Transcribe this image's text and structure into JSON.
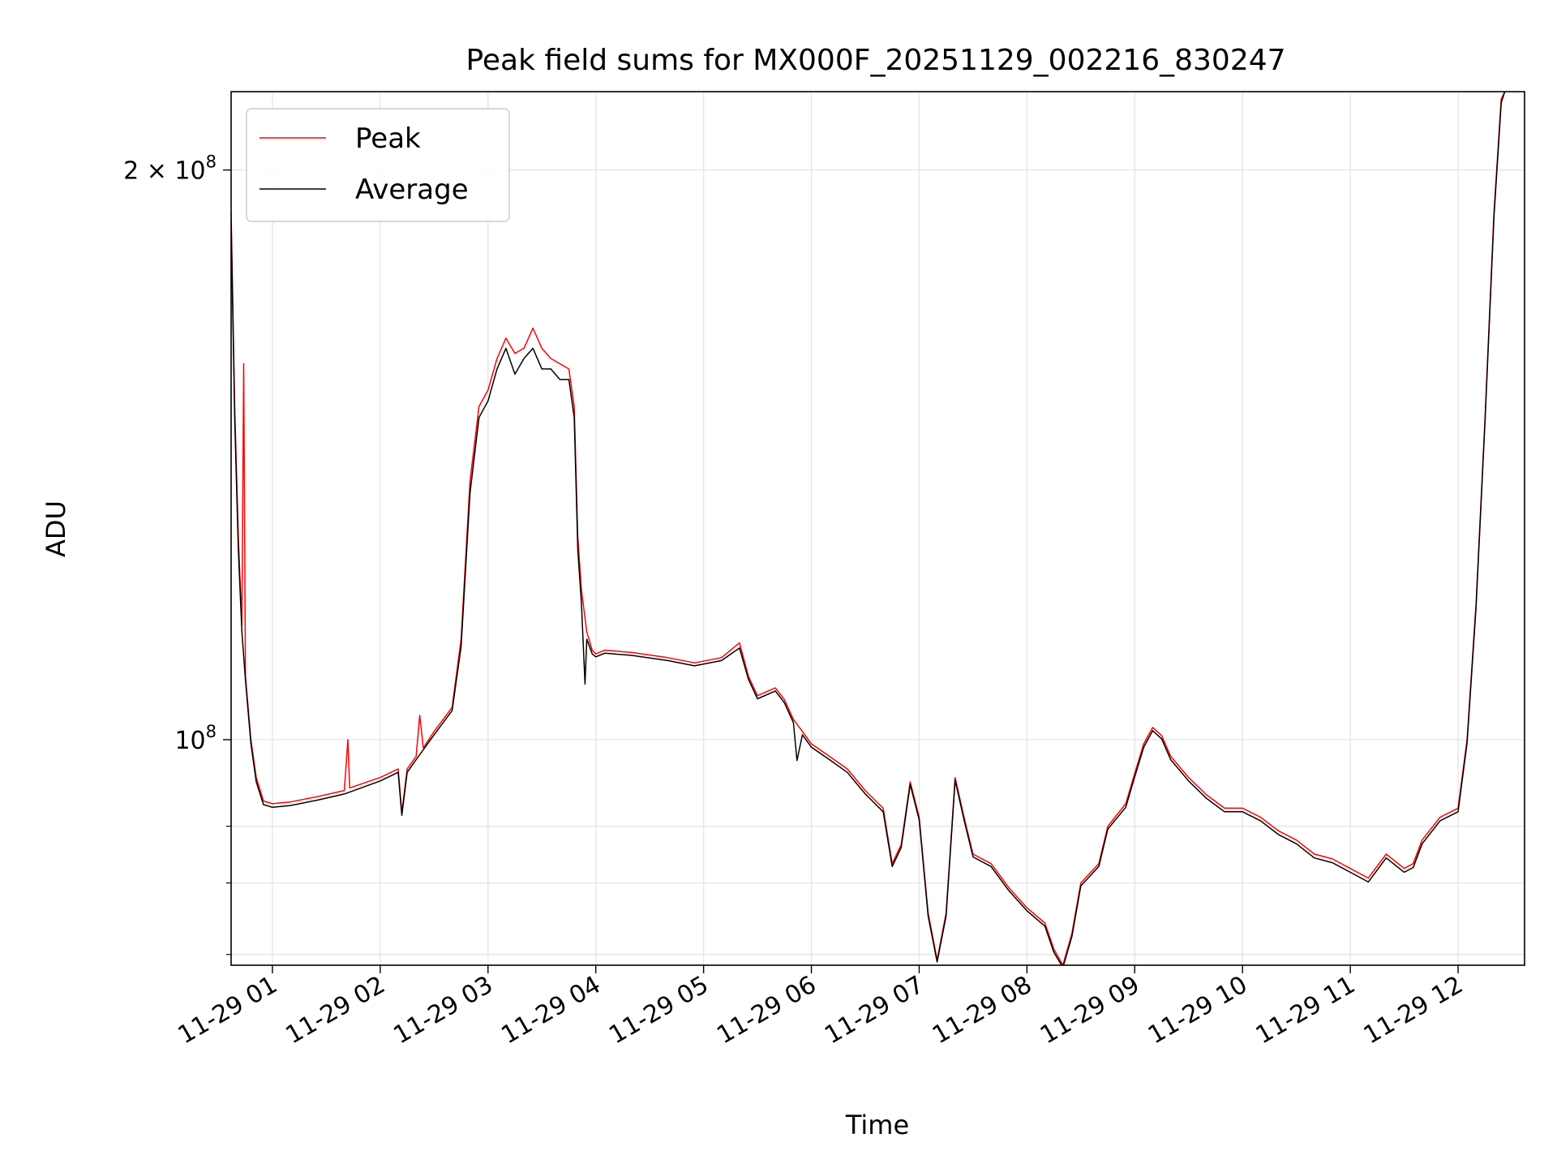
{
  "chart_data": {
    "type": "line",
    "title": "Peak field sums for MX000F_20251129_002216_830247",
    "xlabel": "Time",
    "ylabel": "ADU",
    "y_scale": "log",
    "grid": true,
    "legend_position": "top-left",
    "xlim": [
      "2025-11-29 00:37",
      "2025-11-29 12:37"
    ],
    "ylim": [
      76000000,
      220000000
    ],
    "x_ticks": [
      "2025-11-29 01:00",
      "2025-11-29 02:00",
      "2025-11-29 03:00",
      "2025-11-29 04:00",
      "2025-11-29 05:00",
      "2025-11-29 06:00",
      "2025-11-29 07:00",
      "2025-11-29 08:00",
      "2025-11-29 09:00",
      "2025-11-29 10:00",
      "2025-11-29 11:00",
      "2025-11-29 12:00"
    ],
    "x_tick_labels": [
      "11-29 01",
      "11-29 02",
      "11-29 03",
      "11-29 04",
      "11-29 05",
      "11-29 06",
      "11-29 07",
      "11-29 08",
      "11-29 09",
      "11-29 10",
      "11-29 11",
      "11-29 12"
    ],
    "y_ticks_major": [
      {
        "value": 100000000,
        "base": "10",
        "exp": "8",
        "prefix": ""
      },
      {
        "value": 200000000,
        "base": "10",
        "exp": "8",
        "prefix": "2 × "
      }
    ],
    "y_ticks_minor": [
      77000000,
      84000000,
      90000000
    ],
    "series": [
      {
        "name": "Peak",
        "color": "#ff0000",
        "points": [
          [
            "2025-11-29 00:37",
            190000000
          ],
          [
            "2025-11-29 00:39",
            150000000
          ],
          [
            "2025-11-29 00:41",
            128000000
          ],
          [
            "2025-11-29 00:43",
            115000000
          ],
          [
            "2025-11-29 00:44",
            158000000
          ],
          [
            "2025-11-29 00:45",
            108000000
          ],
          [
            "2025-11-29 00:48",
            100000000
          ],
          [
            "2025-11-29 00:51",
            95500000
          ],
          [
            "2025-11-29 00:55",
            92800000
          ],
          [
            "2025-11-29 01:00",
            92500000
          ],
          [
            "2025-11-29 01:10",
            92700000
          ],
          [
            "2025-11-29 01:25",
            93300000
          ],
          [
            "2025-11-29 01:40",
            94000000
          ],
          [
            "2025-11-29 01:42",
            100000000
          ],
          [
            "2025-11-29 01:43",
            94300000
          ],
          [
            "2025-11-29 02:00",
            95500000
          ],
          [
            "2025-11-29 02:10",
            96500000
          ],
          [
            "2025-11-29 02:12",
            91500000
          ],
          [
            "2025-11-29 02:15",
            96500000
          ],
          [
            "2025-11-29 02:20",
            98000000
          ],
          [
            "2025-11-29 02:22",
            103000000
          ],
          [
            "2025-11-29 02:24",
            99000000
          ],
          [
            "2025-11-29 02:30",
            101000000
          ],
          [
            "2025-11-29 02:40",
            104000000
          ],
          [
            "2025-11-29 02:45",
            113000000
          ],
          [
            "2025-11-29 02:50",
            137000000
          ],
          [
            "2025-11-29 02:55",
            150000000
          ],
          [
            "2025-11-29 03:00",
            153000000
          ],
          [
            "2025-11-29 03:05",
            159000000
          ],
          [
            "2025-11-29 03:10",
            163000000
          ],
          [
            "2025-11-29 03:15",
            160000000
          ],
          [
            "2025-11-29 03:20",
            161000000
          ],
          [
            "2025-11-29 03:25",
            165000000
          ],
          [
            "2025-11-29 03:30",
            161000000
          ],
          [
            "2025-11-29 03:35",
            159000000
          ],
          [
            "2025-11-29 03:40",
            158000000
          ],
          [
            "2025-11-29 03:45",
            157000000
          ],
          [
            "2025-11-29 03:48",
            150000000
          ],
          [
            "2025-11-29 03:50",
            128000000
          ],
          [
            "2025-11-29 03:52",
            120000000
          ],
          [
            "2025-11-29 03:55",
            114000000
          ],
          [
            "2025-11-29 03:58",
            111500000
          ],
          [
            "2025-11-29 04:00",
            111000000
          ],
          [
            "2025-11-29 04:05",
            111500000
          ],
          [
            "2025-11-29 04:20",
            111200000
          ],
          [
            "2025-11-29 04:40",
            110500000
          ],
          [
            "2025-11-29 04:55",
            109800000
          ],
          [
            "2025-11-29 05:10",
            110500000
          ],
          [
            "2025-11-29 05:20",
            112500000
          ],
          [
            "2025-11-29 05:25",
            108000000
          ],
          [
            "2025-11-29 05:30",
            105500000
          ],
          [
            "2025-11-29 05:40",
            106500000
          ],
          [
            "2025-11-29 05:45",
            105000000
          ],
          [
            "2025-11-29 05:50",
            102500000
          ],
          [
            "2025-11-29 05:55",
            101000000
          ],
          [
            "2025-11-29 06:00",
            99500000
          ],
          [
            "2025-11-29 06:10",
            98000000
          ],
          [
            "2025-11-29 06:20",
            96500000
          ],
          [
            "2025-11-29 06:30",
            94000000
          ],
          [
            "2025-11-29 06:40",
            92000000
          ],
          [
            "2025-11-29 06:45",
            86000000
          ],
          [
            "2025-11-29 06:50",
            88000000
          ],
          [
            "2025-11-29 06:55",
            95000000
          ],
          [
            "2025-11-29 07:00",
            91000000
          ],
          [
            "2025-11-29 07:05",
            81000000
          ],
          [
            "2025-11-29 07:10",
            76500000
          ],
          [
            "2025-11-29 07:15",
            81000000
          ],
          [
            "2025-11-29 07:20",
            95500000
          ],
          [
            "2025-11-29 07:25",
            91000000
          ],
          [
            "2025-11-29 07:30",
            87000000
          ],
          [
            "2025-11-29 07:40",
            86000000
          ],
          [
            "2025-11-29 07:50",
            83500000
          ],
          [
            "2025-11-29 08:00",
            81500000
          ],
          [
            "2025-11-29 08:10",
            80000000
          ],
          [
            "2025-11-29 08:15",
            77500000
          ],
          [
            "2025-11-29 08:20",
            76000000
          ],
          [
            "2025-11-29 08:25",
            79000000
          ],
          [
            "2025-11-29 08:30",
            84000000
          ],
          [
            "2025-11-29 08:40",
            86000000
          ],
          [
            "2025-11-29 08:45",
            90000000
          ],
          [
            "2025-11-29 08:55",
            92500000
          ],
          [
            "2025-11-29 09:00",
            96000000
          ],
          [
            "2025-11-29 09:05",
            99500000
          ],
          [
            "2025-11-29 09:10",
            101500000
          ],
          [
            "2025-11-29 09:15",
            100500000
          ],
          [
            "2025-11-29 09:20",
            98000000
          ],
          [
            "2025-11-29 09:30",
            95500000
          ],
          [
            "2025-11-29 09:40",
            93500000
          ],
          [
            "2025-11-29 09:50",
            92000000
          ],
          [
            "2025-11-29 10:00",
            92000000
          ],
          [
            "2025-11-29 10:10",
            91000000
          ],
          [
            "2025-11-29 10:20",
            89500000
          ],
          [
            "2025-11-29 10:30",
            88500000
          ],
          [
            "2025-11-29 10:40",
            87000000
          ],
          [
            "2025-11-29 10:50",
            86500000
          ],
          [
            "2025-11-29 11:00",
            85500000
          ],
          [
            "2025-11-29 11:10",
            84500000
          ],
          [
            "2025-11-29 11:20",
            87000000
          ],
          [
            "2025-11-29 11:30",
            85500000
          ],
          [
            "2025-11-29 11:35",
            86000000
          ],
          [
            "2025-11-29 11:40",
            88500000
          ],
          [
            "2025-11-29 11:50",
            91000000
          ],
          [
            "2025-11-29 12:00",
            92000000
          ],
          [
            "2025-11-29 12:05",
            100000000
          ],
          [
            "2025-11-29 12:10",
            118000000
          ],
          [
            "2025-11-29 12:15",
            148000000
          ],
          [
            "2025-11-29 12:20",
            190000000
          ],
          [
            "2025-11-29 12:24",
            218000000
          ],
          [
            "2025-11-29 12:26",
            220000000
          ]
        ]
      },
      {
        "name": "Average",
        "color": "#000000",
        "points": [
          [
            "2025-11-29 00:37",
            188000000
          ],
          [
            "2025-11-29 00:39",
            148000000
          ],
          [
            "2025-11-29 00:41",
            126000000
          ],
          [
            "2025-11-29 00:43",
            114000000
          ],
          [
            "2025-11-29 00:45",
            107500000
          ],
          [
            "2025-11-29 00:48",
            99500000
          ],
          [
            "2025-11-29 00:51",
            95000000
          ],
          [
            "2025-11-29 00:55",
            92400000
          ],
          [
            "2025-11-29 01:00",
            92100000
          ],
          [
            "2025-11-29 01:10",
            92300000
          ],
          [
            "2025-11-29 01:25",
            92900000
          ],
          [
            "2025-11-29 01:40",
            93600000
          ],
          [
            "2025-11-29 02:00",
            95100000
          ],
          [
            "2025-11-29 02:10",
            96100000
          ],
          [
            "2025-11-29 02:12",
            91200000
          ],
          [
            "2025-11-29 02:15",
            96100000
          ],
          [
            "2025-11-29 02:20",
            97600000
          ],
          [
            "2025-11-29 02:30",
            100600000
          ],
          [
            "2025-11-29 02:40",
            103600000
          ],
          [
            "2025-11-29 02:45",
            112000000
          ],
          [
            "2025-11-29 02:50",
            135000000
          ],
          [
            "2025-11-29 02:55",
            148000000
          ],
          [
            "2025-11-29 03:00",
            151000000
          ],
          [
            "2025-11-29 03:05",
            157000000
          ],
          [
            "2025-11-29 03:10",
            161000000
          ],
          [
            "2025-11-29 03:15",
            156000000
          ],
          [
            "2025-11-29 03:20",
            159000000
          ],
          [
            "2025-11-29 03:25",
            161000000
          ],
          [
            "2025-11-29 03:30",
            157000000
          ],
          [
            "2025-11-29 03:35",
            157000000
          ],
          [
            "2025-11-29 03:40",
            155000000
          ],
          [
            "2025-11-29 03:45",
            155000000
          ],
          [
            "2025-11-29 03:48",
            148000000
          ],
          [
            "2025-11-29 03:50",
            126000000
          ],
          [
            "2025-11-29 03:52",
            118000000
          ],
          [
            "2025-11-29 03:54",
            107000000
          ],
          [
            "2025-11-29 03:55",
            113000000
          ],
          [
            "2025-11-29 03:58",
            111000000
          ],
          [
            "2025-11-29 04:00",
            110600000
          ],
          [
            "2025-11-29 04:05",
            111100000
          ],
          [
            "2025-11-29 04:20",
            110800000
          ],
          [
            "2025-11-29 04:40",
            110100000
          ],
          [
            "2025-11-29 04:55",
            109400000
          ],
          [
            "2025-11-29 05:10",
            110100000
          ],
          [
            "2025-11-29 05:20",
            111800000
          ],
          [
            "2025-11-29 05:25",
            107600000
          ],
          [
            "2025-11-29 05:30",
            105100000
          ],
          [
            "2025-11-29 05:40",
            106100000
          ],
          [
            "2025-11-29 05:45",
            104600000
          ],
          [
            "2025-11-29 05:50",
            102100000
          ],
          [
            "2025-11-29 05:52",
            97500000
          ],
          [
            "2025-11-29 05:55",
            100600000
          ],
          [
            "2025-11-29 06:00",
            99100000
          ],
          [
            "2025-11-29 06:10",
            97600000
          ],
          [
            "2025-11-29 06:20",
            96100000
          ],
          [
            "2025-11-29 06:30",
            93600000
          ],
          [
            "2025-11-29 06:40",
            91600000
          ],
          [
            "2025-11-29 06:45",
            85700000
          ],
          [
            "2025-11-29 06:50",
            87700000
          ],
          [
            "2025-11-29 06:55",
            94700000
          ],
          [
            "2025-11-29 07:00",
            90700000
          ],
          [
            "2025-11-29 07:05",
            80700000
          ],
          [
            "2025-11-29 07:10",
            76300000
          ],
          [
            "2025-11-29 07:15",
            80700000
          ],
          [
            "2025-11-29 07:20",
            95200000
          ],
          [
            "2025-11-29 07:25",
            90700000
          ],
          [
            "2025-11-29 07:30",
            86700000
          ],
          [
            "2025-11-29 07:40",
            85700000
          ],
          [
            "2025-11-29 07:50",
            83200000
          ],
          [
            "2025-11-29 08:00",
            81200000
          ],
          [
            "2025-11-29 08:10",
            79700000
          ],
          [
            "2025-11-29 08:15",
            77200000
          ],
          [
            "2025-11-29 08:20",
            75800000
          ],
          [
            "2025-11-29 08:25",
            78700000
          ],
          [
            "2025-11-29 08:30",
            83700000
          ],
          [
            "2025-11-29 08:40",
            85700000
          ],
          [
            "2025-11-29 08:45",
            89700000
          ],
          [
            "2025-11-29 08:55",
            92100000
          ],
          [
            "2025-11-29 09:00",
            95600000
          ],
          [
            "2025-11-29 09:05",
            99100000
          ],
          [
            "2025-11-29 09:10",
            101100000
          ],
          [
            "2025-11-29 09:15",
            100100000
          ],
          [
            "2025-11-29 09:20",
            97600000
          ],
          [
            "2025-11-29 09:30",
            95100000
          ],
          [
            "2025-11-29 09:40",
            93100000
          ],
          [
            "2025-11-29 09:50",
            91600000
          ],
          [
            "2025-11-29 10:00",
            91600000
          ],
          [
            "2025-11-29 10:10",
            90600000
          ],
          [
            "2025-11-29 10:20",
            89100000
          ],
          [
            "2025-11-29 10:30",
            88100000
          ],
          [
            "2025-11-29 10:40",
            86600000
          ],
          [
            "2025-11-29 10:50",
            86100000
          ],
          [
            "2025-11-29 11:00",
            85100000
          ],
          [
            "2025-11-29 11:10",
            84100000
          ],
          [
            "2025-11-29 11:20",
            86600000
          ],
          [
            "2025-11-29 11:30",
            85100000
          ],
          [
            "2025-11-29 11:35",
            85600000
          ],
          [
            "2025-11-29 11:40",
            88100000
          ],
          [
            "2025-11-29 11:50",
            90600000
          ],
          [
            "2025-11-29 12:00",
            91600000
          ],
          [
            "2025-11-29 12:05",
            99600000
          ],
          [
            "2025-11-29 12:10",
            117500000
          ],
          [
            "2025-11-29 12:15",
            147500000
          ],
          [
            "2025-11-29 12:20",
            189000000
          ],
          [
            "2025-11-29 12:24",
            217000000
          ],
          [
            "2025-11-29 12:26",
            220000000
          ]
        ]
      }
    ]
  }
}
